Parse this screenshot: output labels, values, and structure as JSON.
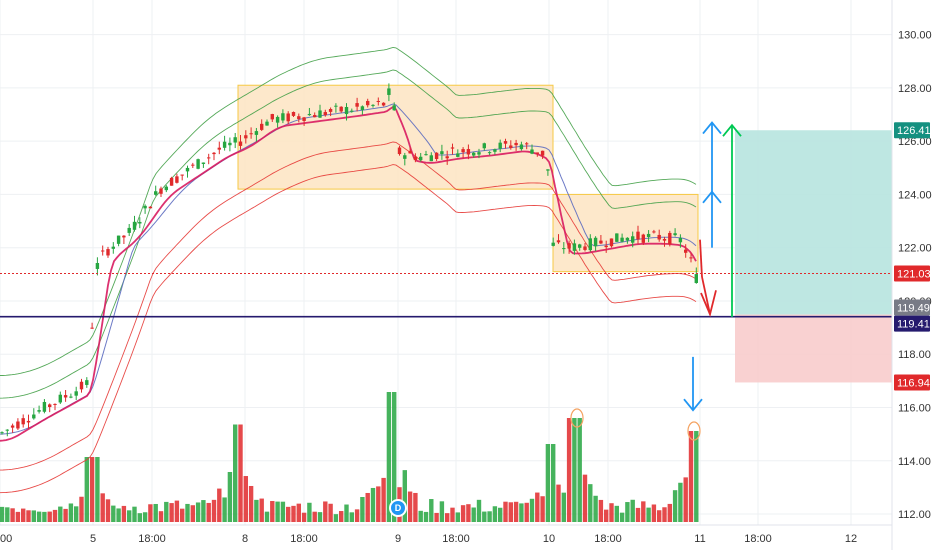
{
  "chart_data": {
    "type": "candlestick",
    "title": "",
    "ylim": [
      111.4,
      131.0
    ],
    "y_ticks": [
      "130.00",
      "128.00",
      "126.00",
      "124.00",
      "122.00",
      "120.00",
      "118.00",
      "116.00",
      "114.00",
      "112.00"
    ],
    "x_ticks": [
      "00",
      "5",
      "18:00",
      "8",
      "18:00",
      "9",
      "18:00",
      "10",
      "18:00",
      "11",
      "18:00",
      "12"
    ],
    "price_tags": [
      {
        "label": "126.41",
        "value": 126.41,
        "color": "#159080"
      },
      {
        "label": "121.03",
        "value": 121.03,
        "color": "#e0292b"
      },
      {
        "label": "119.49",
        "value": 119.49,
        "color": "#787b86"
      },
      {
        "label": "119.41",
        "value": 119.41,
        "color": "#251a6e"
      },
      {
        "label": "116.94",
        "value": 116.94,
        "color": "#e0292b"
      }
    ],
    "horizontal_lines": [
      {
        "value": 121.03,
        "color": "#e0292b",
        "style": "dotted"
      },
      {
        "value": 119.41,
        "color": "#251a6e",
        "style": "solid"
      }
    ],
    "consolidation_boxes": [
      {
        "x_from": 238,
        "x_to": 553,
        "y_from": 124.2,
        "y_to": 128.1
      },
      {
        "x_from": 553,
        "x_to": 698,
        "y_from": 121.1,
        "y_to": 124.0
      }
    ],
    "position": {
      "entry": 119.49,
      "target": 126.41,
      "stop": 116.94
    },
    "event_badge": "D",
    "colors": {
      "up": "#26a641",
      "down": "#e0292b",
      "target_fill": "#b7e4df",
      "stop_fill": "#f8cccc",
      "box_fill": "#fde4c2",
      "box_border": "#f6c945",
      "envelope_outer": "#43a047",
      "envelope_inner": "#e53935",
      "ma_blue": "#5c6bc0",
      "ma_main": "#d81b60",
      "arrow_blue": "#2196f3",
      "arrow_green": "#00c853",
      "arrow_red": "#e0292b"
    },
    "anchors": [
      [
        0,
        115.0
      ],
      [
        40,
        115.9
      ],
      [
        60,
        116.3
      ],
      [
        88,
        116.9
      ],
      [
        96,
        121.2
      ],
      [
        104,
        121.8
      ],
      [
        130,
        122.6
      ],
      [
        160,
        124.2
      ],
      [
        200,
        125.2
      ],
      [
        220,
        125.7
      ],
      [
        240,
        126.0
      ],
      [
        270,
        126.8
      ],
      [
        310,
        127.0
      ],
      [
        350,
        127.2
      ],
      [
        385,
        127.4
      ],
      [
        392,
        128.1
      ],
      [
        398,
        125.6
      ],
      [
        420,
        125.4
      ],
      [
        450,
        125.6
      ],
      [
        480,
        125.7
      ],
      [
        520,
        125.9
      ],
      [
        545,
        125.5
      ],
      [
        550,
        124.5
      ],
      [
        553,
        122.1
      ],
      [
        570,
        122.0
      ],
      [
        600,
        122.2
      ],
      [
        630,
        122.4
      ],
      [
        660,
        122.4
      ],
      [
        680,
        122.3
      ],
      [
        690,
        121.6
      ],
      [
        697,
        120.8
      ]
    ],
    "volume_peaks": [
      [
        92,
        0.5
      ],
      [
        238,
        0.75
      ],
      [
        390,
        1.0
      ],
      [
        550,
        0.6
      ],
      [
        575,
        0.8
      ],
      [
        693,
        0.7
      ]
    ]
  }
}
